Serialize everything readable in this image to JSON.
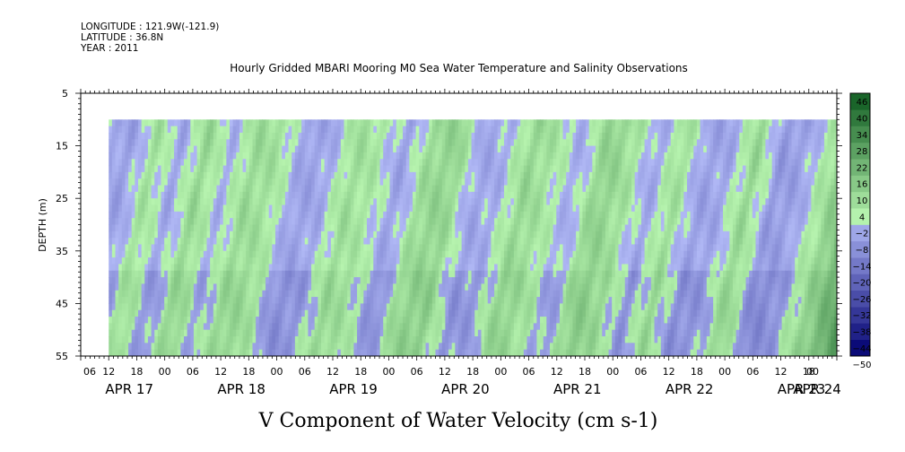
{
  "header": {
    "longitude": "LONGITUDE : 121.9W(-121.9)",
    "latitude": "LATITUDE : 36.8N",
    "year": "YEAR : 2011"
  },
  "chart_data": {
    "type": "heatmap",
    "title": "Hourly Gridded MBARI Mooring M0 Sea Water Temperature and Salinity Observations",
    "xlabel": "V Component of Water Velocity (cm s-1)",
    "ylabel": "DEPTH (m)",
    "ylim": [
      5,
      55
    ],
    "y_inverted": true,
    "y_ticks": [
      5,
      15,
      25,
      35,
      45,
      55
    ],
    "x_range_hours": [
      0,
      162
    ],
    "data_start_hour": 6,
    "data_depth_range": [
      10,
      55
    ],
    "x_hour_ticks": [
      "06",
      "12",
      "18",
      "00",
      "06",
      "12",
      "18",
      "00",
      "06",
      "12",
      "18",
      "00",
      "06",
      "12",
      "18",
      "00",
      "06",
      "12",
      "18",
      "00",
      "06",
      "12",
      "18",
      "00",
      "06",
      "12",
      "18",
      "00",
      "00"
    ],
    "x_hour_tick_positions": [
      0,
      6,
      12,
      18,
      24,
      30,
      36,
      42,
      48,
      54,
      60,
      66,
      72,
      78,
      84,
      90,
      96,
      102,
      108,
      114,
      120,
      126,
      132,
      138,
      144,
      150,
      156,
      162,
      162
    ],
    "date_labels": [
      "APR 17",
      "APR 18",
      "APR 19",
      "APR 20",
      "APR 21",
      "APR 22",
      "APR 23",
      "APR 24"
    ],
    "date_label_hours": [
      6,
      30,
      54,
      78,
      102,
      126,
      150,
      162
    ],
    "colorbar_levels": [
      -50,
      -44,
      -38,
      -32,
      -26,
      -20,
      -14,
      -8,
      -2,
      4,
      10,
      16,
      22,
      28,
      34,
      40,
      46
    ],
    "colorbar_labels": [
      "46",
      "40",
      "34",
      "28",
      "22",
      "16",
      "10",
      "4",
      "−2",
      "−8",
      "−14",
      "−20",
      "−26",
      "−32",
      "−38",
      "−44",
      "−50"
    ],
    "colors": {
      "neg_light": "#b0b8f5",
      "neg_dark": "#000070",
      "pos_light": "#b8f5b0",
      "pos_dark": "#004d14"
    },
    "velocity_pattern": {
      "description": "alternating northward (positive, green) and southward (negative, blue) bands sloping with depth",
      "band_values": [
        -4,
        -6,
        6,
        -5,
        9,
        -3,
        8,
        5,
        -6,
        -4,
        7,
        3,
        -6,
        8,
        10,
        -5,
        -3,
        9,
        4,
        -4,
        11,
        6,
        -5,
        7,
        -6,
        -4,
        9,
        -8,
        -5,
        6
      ]
    }
  }
}
